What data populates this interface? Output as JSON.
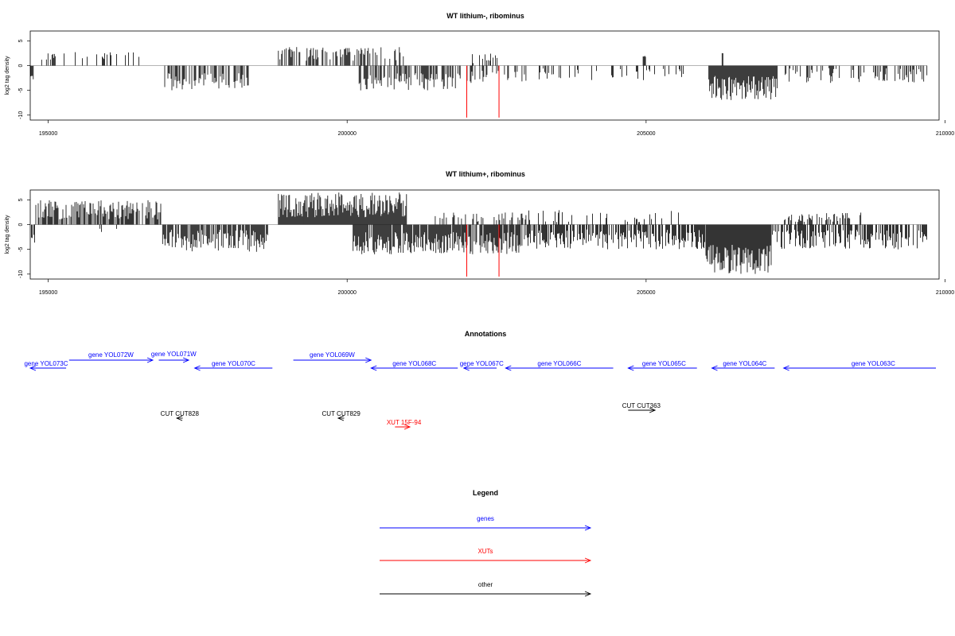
{
  "chart_data": [
    {
      "type": "bar",
      "title": "WT lithium-, ribominus",
      "ylabel": "log2 tag density",
      "xlabel": "",
      "xlim": [
        194700,
        209900
      ],
      "ylim": [
        -11,
        7
      ],
      "xticks": [
        195000,
        200000,
        205000,
        210000
      ],
      "yticks": [
        5,
        0,
        -5,
        -10
      ],
      "grid": false,
      "bar_color": "#000000",
      "marker_lines": {
        "color": "#ff0000",
        "x": [
          202000,
          202540
        ],
        "y": -10.5
      },
      "segments": [
        {
          "start": 194710,
          "end": 194760,
          "sign": -1,
          "min": 2,
          "max": 2.8,
          "density": 0.8,
          "seed": 1
        },
        {
          "start": 194890,
          "end": 195130,
          "sign": 1,
          "min": 1,
          "max": 3.2,
          "density": 0.45,
          "seed": 2
        },
        {
          "start": 195200,
          "end": 196600,
          "sign": 1,
          "min": 1,
          "max": 3,
          "density": 0.18,
          "seed": 3
        },
        {
          "start": 196900,
          "end": 197020,
          "sign": 1,
          "min": 1,
          "max": 3.6,
          "density": 0.3,
          "seed": 4
        },
        {
          "start": 196950,
          "end": 198350,
          "sign": -1,
          "min": 1.5,
          "max": 5,
          "density": 0.55,
          "seed": 5
        },
        {
          "start": 198850,
          "end": 200950,
          "sign": 1,
          "min": 1,
          "max": 3.8,
          "density": 0.45,
          "seed": 6
        },
        {
          "start": 200200,
          "end": 201900,
          "sign": -1,
          "min": 1.5,
          "max": 5,
          "density": 0.6,
          "seed": 7
        },
        {
          "start": 202000,
          "end": 202540,
          "sign": 1,
          "min": 0.5,
          "max": 2.5,
          "density": 0.25,
          "seed": 8
        },
        {
          "start": 201900,
          "end": 203000,
          "sign": -1,
          "min": 1,
          "max": 3.5,
          "density": 0.35,
          "seed": 9
        },
        {
          "start": 203000,
          "end": 205700,
          "sign": -1,
          "min": 0.5,
          "max": 3,
          "density": 0.2,
          "seed": 10
        },
        {
          "start": 204950,
          "end": 205000,
          "sign": 1,
          "min": 1.8,
          "max": 2,
          "density": 0.9,
          "seed": 11
        },
        {
          "start": 206050,
          "end": 207200,
          "sign": -1,
          "min": 2,
          "max": 7,
          "density": 1.0,
          "seed": 12
        },
        {
          "start": 206270,
          "end": 206300,
          "sign": 1,
          "min": 2.5,
          "max": 2.8,
          "density": 0.9,
          "seed": 13
        },
        {
          "start": 207300,
          "end": 209700,
          "sign": -1,
          "min": 0.5,
          "max": 3.5,
          "density": 0.35,
          "seed": 14
        }
      ]
    },
    {
      "type": "bar",
      "title": "WT lithium+, ribominus",
      "ylabel": "log2 tag density",
      "xlabel": "",
      "xlim": [
        194700,
        209900
      ],
      "ylim": [
        -11,
        7
      ],
      "xticks": [
        195000,
        200000,
        205000,
        210000
      ],
      "yticks": [
        5,
        0,
        -5,
        -10
      ],
      "grid": false,
      "bar_color": "#000000",
      "marker_lines": {
        "color": "#ff0000",
        "x": [
          202000,
          202540
        ],
        "y": -10.5
      },
      "segments": [
        {
          "start": 194720,
          "end": 194780,
          "sign": -1,
          "min": 2,
          "max": 4,
          "density": 0.8,
          "seed": 21
        },
        {
          "start": 194780,
          "end": 196900,
          "sign": 1,
          "min": 1,
          "max": 5,
          "density": 0.7,
          "seed": 22
        },
        {
          "start": 195600,
          "end": 196200,
          "sign": -1,
          "min": 0.5,
          "max": 1.5,
          "density": 0.1,
          "seed": 23
        },
        {
          "start": 196900,
          "end": 198700,
          "sign": -1,
          "min": 1,
          "max": 5.5,
          "density": 0.75,
          "seed": 24
        },
        {
          "start": 198850,
          "end": 201000,
          "sign": 1,
          "min": 1.5,
          "max": 6.5,
          "density": 1.0,
          "seed": 25
        },
        {
          "start": 200100,
          "end": 201900,
          "sign": -1,
          "min": 1.5,
          "max": 6,
          "density": 0.9,
          "seed": 26
        },
        {
          "start": 201300,
          "end": 203000,
          "sign": 1,
          "min": 0.5,
          "max": 2.5,
          "density": 0.25,
          "seed": 27
        },
        {
          "start": 201900,
          "end": 203000,
          "sign": -1,
          "min": 1.5,
          "max": 6,
          "density": 0.8,
          "seed": 28
        },
        {
          "start": 203000,
          "end": 206000,
          "sign": -1,
          "min": 1,
          "max": 5,
          "density": 0.7,
          "seed": 29
        },
        {
          "start": 203000,
          "end": 205700,
          "sign": 1,
          "min": 0.5,
          "max": 3,
          "density": 0.2,
          "seed": 30
        },
        {
          "start": 206000,
          "end": 207100,
          "sign": -1,
          "min": 4,
          "max": 10,
          "density": 1.0,
          "seed": 31
        },
        {
          "start": 207100,
          "end": 209700,
          "sign": -1,
          "min": 1,
          "max": 5,
          "density": 0.7,
          "seed": 32
        },
        {
          "start": 207300,
          "end": 208600,
          "sign": 1,
          "min": 0.5,
          "max": 2.5,
          "density": 0.5,
          "seed": 33
        }
      ]
    }
  ],
  "annotations": {
    "title": "Annotations",
    "items": [
      {
        "label": "gene YOL073C",
        "color": "#0000ff",
        "dir": "left",
        "x1": 194500,
        "x2": 195300,
        "row": 2,
        "label_x": 194800
      },
      {
        "label": "gene YOL072W",
        "color": "#0000ff",
        "dir": "right",
        "x1": 195350,
        "x2": 196750,
        "row": 1,
        "label_x": 196050
      },
      {
        "label": "gene YOL071W",
        "color": "#0000ff",
        "dir": "right",
        "x1": 196850,
        "x2": 197350,
        "row": 1.5,
        "label_x": 197100
      },
      {
        "label": "gene YOL070C",
        "color": "#0000ff",
        "dir": "left",
        "x1": 197450,
        "x2": 198750,
        "row": 2,
        "label_x": 198100
      },
      {
        "label": "gene YOL069W",
        "color": "#0000ff",
        "dir": "right",
        "x1": 199100,
        "x2": 200400,
        "row": 1,
        "label_x": 199750
      },
      {
        "label": "gene YOL068C",
        "color": "#0000ff",
        "dir": "left",
        "x1": 200400,
        "x2": 201850,
        "row": 2,
        "label_x": 201125
      },
      {
        "label": "gene YOL067C",
        "color": "#0000ff",
        "dir": "left",
        "x1": 201950,
        "x2": 202500,
        "row": 2,
        "label_x": 202250
      },
      {
        "label": "gene YOL066C",
        "color": "#0000ff",
        "dir": "left",
        "x1": 202650,
        "x2": 204450,
        "row": 2,
        "label_x": 203550
      },
      {
        "label": "gene YOL065C",
        "color": "#0000ff",
        "dir": "left",
        "x1": 204700,
        "x2": 205850,
        "row": 2,
        "label_x": 205300
      },
      {
        "label": "gene YOL064C",
        "color": "#0000ff",
        "dir": "left",
        "x1": 206100,
        "x2": 207150,
        "row": 2,
        "label_x": 206650
      },
      {
        "label": "gene YOL063C",
        "color": "#0000ff",
        "dir": "left",
        "x1": 207300,
        "x2": 210300,
        "row": 2,
        "label_x": 208800
      },
      {
        "label": "CUT CUT828",
        "color": "#000000",
        "dir": "left",
        "x1": 197150,
        "x2": 197250,
        "row": 4,
        "label_x": 197200
      },
      {
        "label": "CUT CUT829",
        "color": "#000000",
        "dir": "left",
        "x1": 199850,
        "x2": 199950,
        "row": 4,
        "label_x": 199900
      },
      {
        "label": "CUT CUT363",
        "color": "#000000",
        "dir": "right",
        "x1": 204700,
        "x2": 205150,
        "row": 3.5,
        "label_x": 204920
      },
      {
        "label": "XUT 15F-94",
        "color": "#ff0000",
        "dir": "right",
        "x1": 200800,
        "x2": 201050,
        "row": 5,
        "label_x": 200950
      }
    ]
  },
  "legend": {
    "title": "Legend",
    "entries": [
      {
        "label": "genes",
        "color": "#0000ff"
      },
      {
        "label": "XUTs",
        "color": "#ff0000"
      },
      {
        "label": "other",
        "color": "#000000"
      }
    ]
  }
}
